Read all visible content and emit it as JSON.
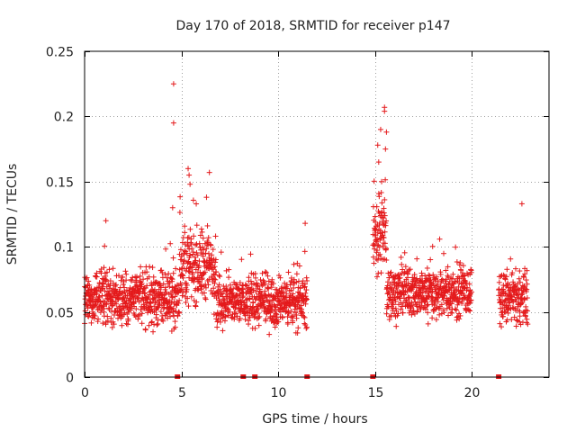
{
  "chart_data": {
    "type": "scatter",
    "title": "Day 170 of 2018, SRMTID for receiver p147",
    "xlabel": "GPS time / hours",
    "ylabel": "SRMTID / TECUs",
    "xlim": [
      0,
      24
    ],
    "ylim": [
      0,
      0.25
    ],
    "x_ticks": [
      0,
      5,
      10,
      15,
      20
    ],
    "x_tick_labels": [
      "0",
      "5",
      "10",
      "15",
      "20"
    ],
    "y_ticks": [
      0,
      0.05,
      0.1,
      0.15,
      0.2,
      0.25
    ],
    "y_tick_labels": [
      "0",
      "0.05",
      "0.1",
      "0.15",
      "0.2",
      "0.25"
    ],
    "grid": true,
    "marker": "+",
    "color": "#e41a1c",
    "data_segments": [
      {
        "x_start": 0.0,
        "x_end": 4.9,
        "y_center": 0.06,
        "y_spread": 0.022
      },
      {
        "x_start": 4.9,
        "x_end": 6.8,
        "y_center": 0.085,
        "y_spread": 0.03
      },
      {
        "x_start": 6.8,
        "x_end": 11.5,
        "y_center": 0.058,
        "y_spread": 0.02
      },
      {
        "x_start": 14.9,
        "x_end": 15.6,
        "y_center": 0.11,
        "y_spread": 0.035
      },
      {
        "x_start": 15.6,
        "x_end": 20.0,
        "y_center": 0.065,
        "y_spread": 0.02
      },
      {
        "x_start": 21.4,
        "x_end": 22.9,
        "y_center": 0.06,
        "y_spread": 0.02
      }
    ],
    "outliers": [
      {
        "x": 4.6,
        "y": 0.225
      },
      {
        "x": 4.6,
        "y": 0.195
      },
      {
        "x": 15.5,
        "y": 0.207
      },
      {
        "x": 15.5,
        "y": 0.204
      },
      {
        "x": 15.3,
        "y": 0.19
      },
      {
        "x": 15.6,
        "y": 0.188
      },
      {
        "x": 15.55,
        "y": 0.175
      },
      {
        "x": 15.15,
        "y": 0.178
      },
      {
        "x": 15.2,
        "y": 0.165
      },
      {
        "x": 15.35,
        "y": 0.15
      },
      {
        "x": 5.35,
        "y": 0.16
      },
      {
        "x": 5.4,
        "y": 0.155
      },
      {
        "x": 6.45,
        "y": 0.157
      },
      {
        "x": 5.45,
        "y": 0.148
      },
      {
        "x": 22.6,
        "y": 0.133
      },
      {
        "x": 1.1,
        "y": 0.12
      },
      {
        "x": 11.4,
        "y": 0.118
      },
      {
        "x": 4.55,
        "y": 0.13
      },
      {
        "x": 6.3,
        "y": 0.138
      }
    ],
    "zero_markers_x": [
      4.8,
      8.2,
      8.8,
      11.5,
      14.9,
      21.4
    ]
  }
}
